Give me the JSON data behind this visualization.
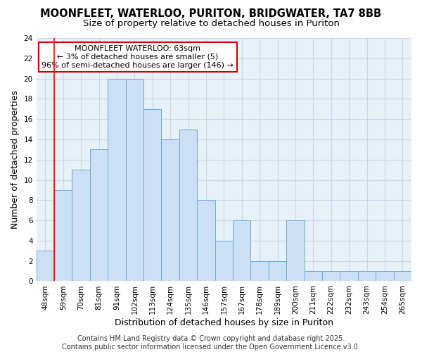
{
  "title_line1": "MOONFLEET, WATERLOO, PURITON, BRIDGWATER, TA7 8BB",
  "title_line2": "Size of property relative to detached houses in Puriton",
  "xlabel": "Distribution of detached houses by size in Puriton",
  "ylabel": "Number of detached properties",
  "categories": [
    "48sqm",
    "59sqm",
    "70sqm",
    "81sqm",
    "91sqm",
    "102sqm",
    "113sqm",
    "124sqm",
    "135sqm",
    "146sqm",
    "157sqm",
    "167sqm",
    "178sqm",
    "189sqm",
    "200sqm",
    "211sqm",
    "222sqm",
    "232sqm",
    "243sqm",
    "254sqm",
    "265sqm"
  ],
  "values": [
    3,
    9,
    11,
    13,
    20,
    20,
    17,
    14,
    15,
    8,
    4,
    6,
    2,
    2,
    6,
    1,
    1,
    1,
    1,
    1,
    1
  ],
  "ylim": [
    0,
    24
  ],
  "yticks": [
    0,
    2,
    4,
    6,
    8,
    10,
    12,
    14,
    16,
    18,
    20,
    22,
    24
  ],
  "bar_color": "#cce0f5",
  "bar_edge_color": "#6aaad4",
  "grid_color": "#c8d8ea",
  "bg_color": "#e8f0f8",
  "red_line_index": 1,
  "annotation_text_line1": "MOONFLEET WATERLOO: 63sqm",
  "annotation_text_line2": "← 3% of detached houses are smaller (5)",
  "annotation_text_line3": "96% of semi-detached houses are larger (146) →",
  "annotation_box_color": "#ffffff",
  "annotation_box_edge_color": "#cc0000",
  "footer_text": "Contains HM Land Registry data © Crown copyright and database right 2025.\nContains public sector information licensed under the Open Government Licence v3.0.",
  "title_fontsize": 10.5,
  "subtitle_fontsize": 9.5,
  "tick_fontsize": 7.5,
  "label_fontsize": 9,
  "annotation_fontsize": 8,
  "footer_fontsize": 7
}
